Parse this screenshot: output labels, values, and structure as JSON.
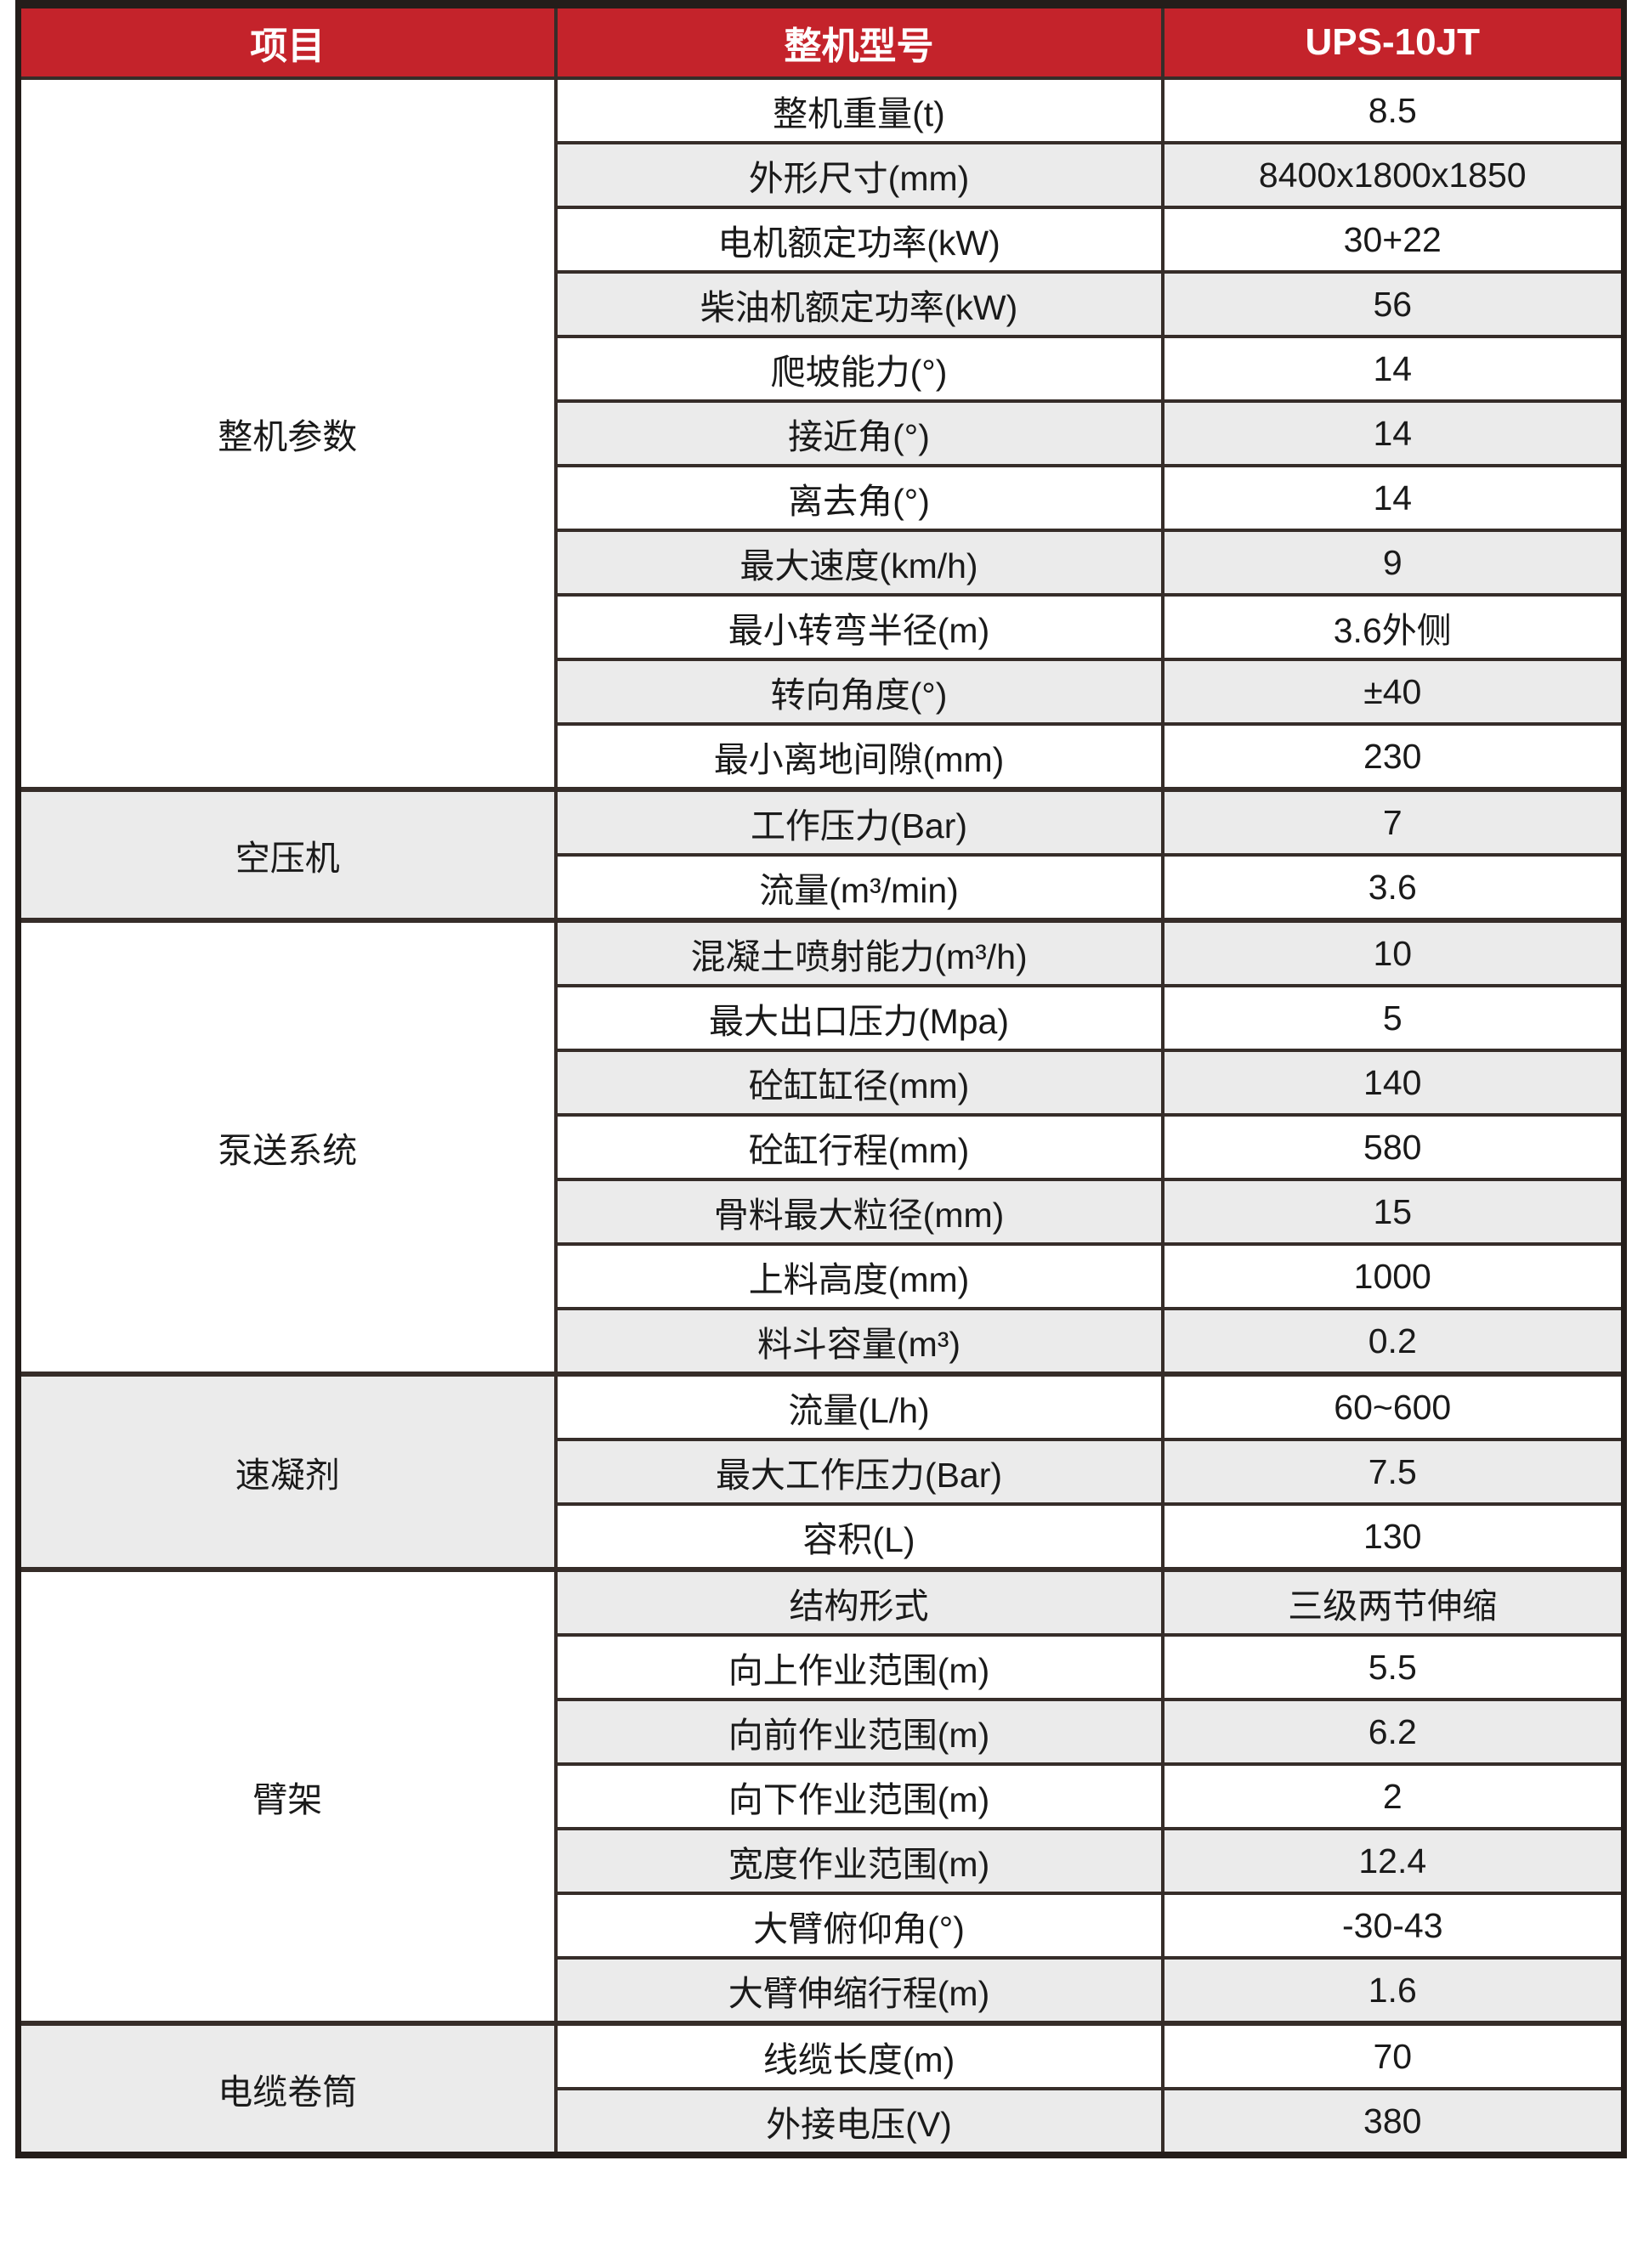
{
  "header": {
    "col1": "项目",
    "col2": "整机型号",
    "col3": "UPS-10JT"
  },
  "colors": {
    "accent_red": "#c4232b",
    "zebra_gray": "#ebebeb",
    "border_dark": "#362d29",
    "header_text": "#ffffff"
  },
  "groups": [
    {
      "name": "整机参数",
      "rows": [
        {
          "label": "整机重量(t)",
          "value": "8.5"
        },
        {
          "label": "外形尺寸(mm)",
          "value": "8400x1800x1850"
        },
        {
          "label": "电机额定功率(kW)",
          "value": "30+22"
        },
        {
          "label": "柴油机额定功率(kW)",
          "value": "56"
        },
        {
          "label": "爬坡能力(°)",
          "value": "14"
        },
        {
          "label": "接近角(°)",
          "value": "14"
        },
        {
          "label": "离去角(°)",
          "value": "14"
        },
        {
          "label": "最大速度(km/h)",
          "value": "9"
        },
        {
          "label": "最小转弯半径(m)",
          "value": "3.6外侧"
        },
        {
          "label": "转向角度(°)",
          "value": "±40"
        },
        {
          "label": "最小离地间隙(mm)",
          "value": "230"
        }
      ]
    },
    {
      "name": "空压机",
      "rows": [
        {
          "label": "工作压力(Bar)",
          "value": "7"
        },
        {
          "label": "流量(m³/min)",
          "value": "3.6"
        }
      ]
    },
    {
      "name": "泵送系统",
      "rows": [
        {
          "label": "混凝土喷射能力(m³/h)",
          "value": "10"
        },
        {
          "label": "最大出口压力(Mpa)",
          "value": "5"
        },
        {
          "label": "砼缸缸径(mm)",
          "value": "140"
        },
        {
          "label": "砼缸行程(mm)",
          "value": "580"
        },
        {
          "label": "骨料最大粒径(mm)",
          "value": "15"
        },
        {
          "label": "上料高度(mm)",
          "value": "1000"
        },
        {
          "label": "料斗容量(m³)",
          "value": "0.2"
        }
      ]
    },
    {
      "name": "速凝剂",
      "rows": [
        {
          "label": "流量(L/h)",
          "value": "60~600"
        },
        {
          "label": "最大工作压力(Bar)",
          "value": "7.5"
        },
        {
          "label": "容积(L)",
          "value": "130"
        }
      ]
    },
    {
      "name": "臂架",
      "rows": [
        {
          "label": "结构形式",
          "value": "三级两节伸缩"
        },
        {
          "label": "向上作业范围(m)",
          "value": "5.5"
        },
        {
          "label": "向前作业范围(m)",
          "value": "6.2"
        },
        {
          "label": "向下作业范围(m)",
          "value": "2"
        },
        {
          "label": "宽度作业范围(m)",
          "value": "12.4"
        },
        {
          "label": "大臂俯仰角(°)",
          "value": "-30-43"
        },
        {
          "label": "大臂伸缩行程(m)",
          "value": "1.6"
        }
      ]
    },
    {
      "name": "电缆卷筒",
      "rows": [
        {
          "label": "线缆长度(m)",
          "value": "70"
        },
        {
          "label": "外接电压(V)",
          "value": "380"
        }
      ]
    }
  ]
}
